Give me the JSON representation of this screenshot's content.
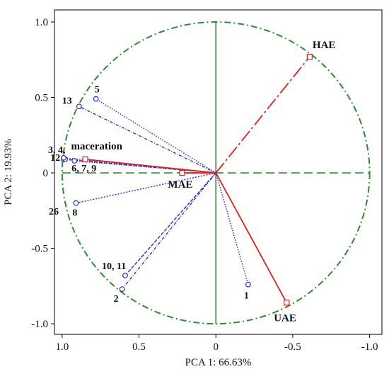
{
  "chart_data": {
    "type": "scatter",
    "xlabel": "PCA 1: 66.63%",
    "ylabel": "PCA 2: 19.93%",
    "xlim": [
      1.05,
      -1.08
    ],
    "ylim": [
      -1.07,
      1.08
    ],
    "x_reversed": true,
    "x_ticks": [
      1.0,
      0.5,
      0,
      -0.5,
      -1.0
    ],
    "x_tick_labels": [
      "1.0",
      "0.5",
      "0",
      "-0.5",
      "-1.0"
    ],
    "y_ticks": [
      1.0,
      0.5,
      0,
      -0.5,
      -1.0
    ],
    "y_tick_labels": [
      "1.0",
      "0.5",
      "0",
      "-0.5",
      "-1.0"
    ],
    "unit_circle": true,
    "variables": [
      {
        "label": "5",
        "x": 0.78,
        "y": 0.49
      },
      {
        "label": "13",
        "x": 0.89,
        "y": 0.44
      },
      {
        "label": "3, 4,",
        "x": 0.99,
        "y": 0.09
      },
      {
        "label": "12",
        "x": 0.98,
        "y": 0.09
      },
      {
        "label": "6, 7, 9",
        "x": 0.92,
        "y": 0.08
      },
      {
        "label": "8",
        "x": 0.91,
        "y": -0.2
      },
      {
        "label": "26",
        "x": 0.99,
        "y": 0.1
      },
      {
        "label": "10, 11",
        "x": 0.59,
        "y": -0.68
      },
      {
        "label": "2",
        "x": 0.61,
        "y": -0.77
      },
      {
        "label": "1",
        "x": -0.21,
        "y": -0.74
      }
    ],
    "methods": [
      {
        "label": "HAE",
        "x": -0.61,
        "y": 0.77
      },
      {
        "label": "maceration",
        "x": 0.85,
        "y": 0.09
      },
      {
        "label": "MAE",
        "x": 0.22,
        "y": 0.0
      },
      {
        "label": "UAE",
        "x": -0.46,
        "y": -0.86
      }
    ],
    "colors": {
      "variables": "#2b2bd6",
      "methods": "#e02020",
      "circle": "#2e8b2e",
      "axes_inner": "#2e8b2e",
      "frame": "#000000"
    }
  }
}
